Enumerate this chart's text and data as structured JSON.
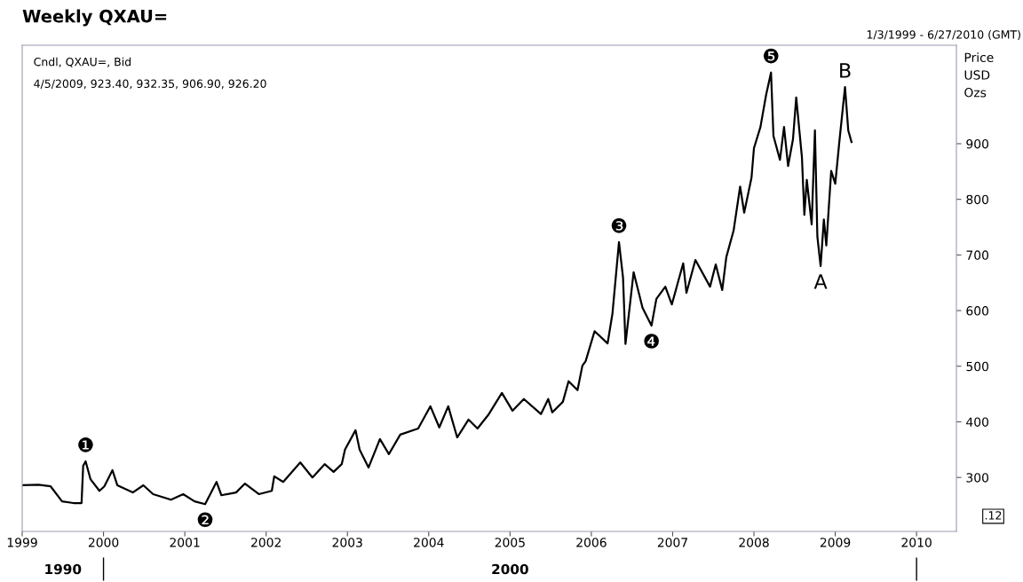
{
  "chart_data": {
    "type": "line",
    "title": "Weekly QXAU=",
    "subtitle": "1/3/1999 - 6/27/2010 (GMT)",
    "ylabel": "Price\nUSD\nOzs",
    "x": [
      1999.0,
      1999.2,
      1999.35,
      1999.49,
      1999.63,
      1999.73,
      1999.75,
      1999.78,
      1999.84,
      1999.95,
      2000.01,
      2000.11,
      2000.17,
      2000.36,
      2000.49,
      2000.61,
      2000.83,
      2000.98,
      2001.12,
      2001.25,
      2001.39,
      2001.45,
      2001.63,
      2001.74,
      2001.91,
      2002.07,
      2002.1,
      2002.21,
      2002.42,
      2002.57,
      2002.72,
      2002.83,
      2002.93,
      2002.97,
      2003.1,
      2003.15,
      2003.26,
      2003.4,
      2003.51,
      2003.65,
      2003.87,
      2004.02,
      2004.13,
      2004.24,
      2004.35,
      2004.49,
      2004.6,
      2004.74,
      2004.9,
      2005.03,
      2005.17,
      2005.38,
      2005.47,
      2005.52,
      2005.65,
      2005.72,
      2005.83,
      2005.89,
      2005.93,
      2006.04,
      2006.2,
      2006.26,
      2006.34,
      2006.39,
      2006.42,
      2006.52,
      2006.63,
      2006.74,
      2006.8,
      2006.91,
      2006.99,
      2007.13,
      2007.17,
      2007.28,
      2007.46,
      2007.53,
      2007.61,
      2007.66,
      2007.75,
      2007.83,
      2007.88,
      2007.97,
      2008.0,
      2008.08,
      2008.15,
      2008.21,
      2008.24,
      2008.32,
      2008.37,
      2008.42,
      2008.48,
      2008.52,
      2008.59,
      2008.62,
      2008.65,
      2008.71,
      2008.75,
      2008.78,
      2008.82,
      2008.86,
      2008.89,
      2008.95,
      2009.0,
      2009.05,
      2009.12,
      2009.16,
      2009.2
    ],
    "series": [
      {
        "color": "#000000",
        "values": [
          286,
          287,
          284,
          257,
          254,
          254,
          321,
          329,
          297,
          276,
          284,
          313,
          286,
          273,
          286,
          270,
          260,
          270,
          257,
          252,
          292,
          268,
          273,
          289,
          270,
          276,
          302,
          292,
          327,
          300,
          324,
          310,
          324,
          350,
          385,
          350,
          318,
          369,
          342,
          377,
          388,
          428,
          390,
          428,
          372,
          404,
          388,
          414,
          452,
          420,
          441,
          414,
          441,
          417,
          436,
          473,
          457,
          501,
          509,
          563,
          541,
          595,
          723,
          659,
          540,
          669,
          605,
          573,
          621,
          643,
          611,
          685,
          632,
          691,
          643,
          683,
          637,
          696,
          744,
          823,
          776,
          839,
          892,
          930,
          988,
          1028,
          914,
          871,
          930,
          860,
          908,
          983,
          876,
          772,
          835,
          755,
          924,
          733,
          680,
          764,
          717,
          851,
          828,
          903,
          1002,
          924,
          903
        ]
      }
    ],
    "xlim": [
      1999.0,
      2010.49
    ],
    "xticks": [
      1999,
      2000,
      2001,
      2002,
      2003,
      2004,
      2005,
      2006,
      2007,
      2008,
      2009,
      2010
    ],
    "ylim": [
      203,
      1077
    ],
    "yticks": [
      300,
      400,
      500,
      600,
      700,
      800,
      900
    ],
    "annotations": [
      "Cndl, QXAU=, Bid",
      "4/5/2009, 923.40, 932.35, 906.90, 926.20",
      ".12",
      "1990",
      "2000",
      {
        "text": "❶",
        "x": 1999.78,
        "y": 329
      },
      {
        "text": "❷",
        "x": 2001.25,
        "y": 252
      },
      {
        "text": "❸",
        "x": 2006.34,
        "y": 723
      },
      {
        "text": "❹",
        "x": 2006.74,
        "y": 573
      },
      {
        "text": "❺",
        "x": 2008.21,
        "y": 1028
      },
      {
        "text": "A",
        "x": 2008.82,
        "y": 680
      },
      {
        "text": "B",
        "x": 2009.12,
        "y": 1002
      }
    ],
    "grid": false,
    "legend": false,
    "marker": "none",
    "line_style": "solid"
  }
}
